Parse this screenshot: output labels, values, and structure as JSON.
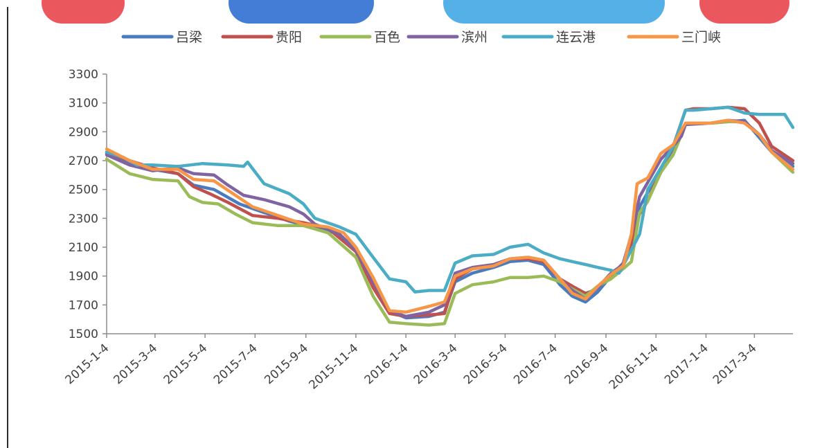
{
  "chart_data": {
    "type": "line",
    "title": "",
    "xlabel": "",
    "ylabel": "",
    "ylim": [
      1500,
      3300
    ],
    "yticks": [
      1500,
      1700,
      1900,
      2100,
      2300,
      2500,
      2700,
      2900,
      3100,
      3300
    ],
    "x_tick_labels": [
      "2015-1-4",
      "2015-3-4",
      "2015-5-4",
      "2015-7-4",
      "2015-9-4",
      "2015-11-4",
      "2016-1-4",
      "2016-3-4",
      "2016-5-4",
      "2016-7-4",
      "2016-9-4",
      "2016-11-4",
      "2017-1-4",
      "2017-3-4"
    ],
    "x_end": "2017-4-20",
    "legend_position": "top",
    "grid": false,
    "series": [
      {
        "name": "吕梁",
        "color": "#4a7bbf",
        "points": [
          [
            "2015-1-4",
            2750
          ],
          [
            "2015-2-1",
            2680
          ],
          [
            "2015-3-1",
            2640
          ],
          [
            "2015-4-1",
            2610
          ],
          [
            "2015-4-20",
            2530
          ],
          [
            "2015-5-15",
            2500
          ],
          [
            "2015-6-15",
            2400
          ],
          [
            "2015-7-15",
            2340
          ],
          [
            "2015-8-15",
            2280
          ],
          [
            "2015-9-15",
            2240
          ],
          [
            "2015-10-15",
            2190
          ],
          [
            "2015-11-4",
            2080
          ],
          [
            "2015-11-25",
            1830
          ],
          [
            "2015-12-15",
            1660
          ],
          [
            "2016-1-4",
            1610
          ],
          [
            "2016-2-1",
            1620
          ],
          [
            "2016-2-20",
            1650
          ],
          [
            "2016-3-4",
            1860
          ],
          [
            "2016-3-25",
            1920
          ],
          [
            "2016-4-20",
            1960
          ],
          [
            "2016-5-10",
            2000
          ],
          [
            "2016-6-1",
            2010
          ],
          [
            "2016-6-20",
            1980
          ],
          [
            "2016-7-10",
            1840
          ],
          [
            "2016-7-25",
            1760
          ],
          [
            "2016-8-10",
            1720
          ],
          [
            "2016-8-25",
            1790
          ],
          [
            "2016-9-10",
            1900
          ],
          [
            "2016-9-25",
            1990
          ],
          [
            "2016-10-5",
            2180
          ],
          [
            "2016-10-15",
            2380
          ],
          [
            "2016-10-25",
            2480
          ],
          [
            "2016-11-10",
            2650
          ],
          [
            "2016-11-25",
            2780
          ],
          [
            "2016-12-10",
            2950
          ],
          [
            "2016-12-20",
            2960
          ],
          [
            "2017-1-10",
            2960
          ],
          [
            "2017-1-31",
            2970
          ],
          [
            "2017-2-20",
            2980
          ],
          [
            "2017-3-10",
            2860
          ],
          [
            "2017-3-25",
            2760
          ],
          [
            "2017-4-20",
            2660
          ]
        ]
      },
      {
        "name": "贵阳",
        "color": "#c0504d",
        "points": [
          [
            "2015-1-4",
            2760
          ],
          [
            "2015-2-1",
            2700
          ],
          [
            "2015-3-1",
            2650
          ],
          [
            "2015-4-1",
            2610
          ],
          [
            "2015-4-20",
            2520
          ],
          [
            "2015-5-10",
            2470
          ],
          [
            "2015-6-1",
            2410
          ],
          [
            "2015-7-1",
            2320
          ],
          [
            "2015-8-1",
            2300
          ],
          [
            "2015-9-1",
            2270
          ],
          [
            "2015-10-1",
            2230
          ],
          [
            "2015-11-4",
            2070
          ],
          [
            "2015-11-25",
            1820
          ],
          [
            "2015-12-15",
            1640
          ],
          [
            "2016-1-4",
            1620
          ],
          [
            "2016-2-1",
            1630
          ],
          [
            "2016-2-20",
            1640
          ],
          [
            "2016-3-4",
            1880
          ],
          [
            "2016-3-25",
            1950
          ],
          [
            "2016-4-20",
            1970
          ],
          [
            "2016-5-10",
            2020
          ],
          [
            "2016-6-1",
            2020
          ],
          [
            "2016-6-20",
            2000
          ],
          [
            "2016-7-10",
            1880
          ],
          [
            "2016-7-25",
            1830
          ],
          [
            "2016-8-10",
            1780
          ],
          [
            "2016-8-20",
            1800
          ],
          [
            "2016-9-10",
            1900
          ],
          [
            "2016-9-25",
            1980
          ],
          [
            "2016-10-5",
            2110
          ],
          [
            "2016-10-15",
            2330
          ],
          [
            "2016-10-25",
            2420
          ],
          [
            "2016-11-10",
            2640
          ],
          [
            "2016-11-25",
            2800
          ],
          [
            "2016-12-10",
            3050
          ],
          [
            "2016-12-20",
            3060
          ],
          [
            "2017-1-10",
            3060
          ],
          [
            "2017-1-31",
            3070
          ],
          [
            "2017-2-20",
            3060
          ],
          [
            "2017-3-10",
            2960
          ],
          [
            "2017-3-25",
            2800
          ],
          [
            "2017-4-20",
            2700
          ]
        ]
      },
      {
        "name": "百色",
        "color": "#9bbb59",
        "points": [
          [
            "2015-1-4",
            2710
          ],
          [
            "2015-2-1",
            2610
          ],
          [
            "2015-3-1",
            2570
          ],
          [
            "2015-4-1",
            2560
          ],
          [
            "2015-4-15",
            2450
          ],
          [
            "2015-5-1",
            2410
          ],
          [
            "2015-5-20",
            2400
          ],
          [
            "2015-6-10",
            2330
          ],
          [
            "2015-7-1",
            2270
          ],
          [
            "2015-8-1",
            2250
          ],
          [
            "2015-9-1",
            2250
          ],
          [
            "2015-10-1",
            2200
          ],
          [
            "2015-11-4",
            2030
          ],
          [
            "2015-11-25",
            1760
          ],
          [
            "2015-12-15",
            1580
          ],
          [
            "2016-1-4",
            1570
          ],
          [
            "2016-2-1",
            1560
          ],
          [
            "2016-2-20",
            1570
          ],
          [
            "2016-3-4",
            1780
          ],
          [
            "2016-3-25",
            1840
          ],
          [
            "2016-4-20",
            1860
          ],
          [
            "2016-5-10",
            1890
          ],
          [
            "2016-6-1",
            1890
          ],
          [
            "2016-6-20",
            1900
          ],
          [
            "2016-7-10",
            1860
          ],
          [
            "2016-7-25",
            1810
          ],
          [
            "2016-8-10",
            1760
          ],
          [
            "2016-8-25",
            1830
          ],
          [
            "2016-9-10",
            1880
          ],
          [
            "2016-9-25",
            1950
          ],
          [
            "2016-10-5",
            2000
          ],
          [
            "2016-10-15",
            2340
          ],
          [
            "2016-10-25",
            2420
          ],
          [
            "2016-11-10",
            2620
          ],
          [
            "2016-11-25",
            2740
          ],
          [
            "2016-12-10",
            2950
          ],
          [
            "2016-12-20",
            2960
          ],
          [
            "2017-1-10",
            2960
          ],
          [
            "2017-1-31",
            2970
          ],
          [
            "2017-2-20",
            2970
          ],
          [
            "2017-3-10",
            2880
          ],
          [
            "2017-3-25",
            2760
          ],
          [
            "2017-4-20",
            2620
          ]
        ]
      },
      {
        "name": "滨州",
        "color": "#8064a2",
        "points": [
          [
            "2015-1-4",
            2740
          ],
          [
            "2015-2-1",
            2670
          ],
          [
            "2015-3-1",
            2630
          ],
          [
            "2015-4-1",
            2650
          ],
          [
            "2015-4-20",
            2610
          ],
          [
            "2015-5-15",
            2600
          ],
          [
            "2015-6-1",
            2530
          ],
          [
            "2015-6-20",
            2460
          ],
          [
            "2015-7-15",
            2430
          ],
          [
            "2015-8-15",
            2380
          ],
          [
            "2015-9-1",
            2330
          ],
          [
            "2015-9-15",
            2260
          ],
          [
            "2015-10-15",
            2190
          ],
          [
            "2015-11-4",
            2080
          ],
          [
            "2015-11-25",
            1860
          ],
          [
            "2015-12-15",
            1660
          ],
          [
            "2016-1-4",
            1620
          ],
          [
            "2016-2-1",
            1650
          ],
          [
            "2016-2-20",
            1700
          ],
          [
            "2016-3-4",
            1920
          ],
          [
            "2016-3-25",
            1960
          ],
          [
            "2016-4-20",
            1980
          ],
          [
            "2016-5-10",
            2020
          ],
          [
            "2016-6-1",
            2030
          ],
          [
            "2016-6-20",
            2010
          ],
          [
            "2016-7-10",
            1880
          ],
          [
            "2016-7-25",
            1800
          ],
          [
            "2016-8-10",
            1740
          ],
          [
            "2016-8-25",
            1820
          ],
          [
            "2016-9-10",
            1920
          ],
          [
            "2016-9-25",
            1980
          ],
          [
            "2016-10-5",
            2190
          ],
          [
            "2016-10-15",
            2450
          ],
          [
            "2016-10-25",
            2550
          ],
          [
            "2016-11-10",
            2710
          ],
          [
            "2016-11-25",
            2800
          ],
          [
            "2016-12-5",
            2870
          ],
          [
            "2016-12-10",
            2950
          ],
          [
            "2017-1-10",
            2960
          ],
          [
            "2017-1-31",
            2980
          ],
          [
            "2017-2-20",
            2970
          ],
          [
            "2017-3-10",
            2880
          ],
          [
            "2017-3-25",
            2770
          ],
          [
            "2017-4-20",
            2680
          ]
        ]
      },
      {
        "name": "连云港",
        "color": "#4bacc6",
        "points": [
          [
            "2015-1-4",
            2760
          ],
          [
            "2015-1-25",
            2720
          ],
          [
            "2015-2-10",
            2670
          ],
          [
            "2015-3-1",
            2670
          ],
          [
            "2015-4-1",
            2660
          ],
          [
            "2015-5-1",
            2680
          ],
          [
            "2015-6-1",
            2670
          ],
          [
            "2015-6-20",
            2660
          ],
          [
            "2015-6-25",
            2690
          ],
          [
            "2015-7-15",
            2540
          ],
          [
            "2015-8-15",
            2470
          ],
          [
            "2015-9-1",
            2400
          ],
          [
            "2015-9-15",
            2300
          ],
          [
            "2015-10-15",
            2240
          ],
          [
            "2015-11-4",
            2190
          ],
          [
            "2015-11-25",
            2030
          ],
          [
            "2015-12-15",
            1880
          ],
          [
            "2016-1-4",
            1860
          ],
          [
            "2016-1-15",
            1790
          ],
          [
            "2016-2-1",
            1800
          ],
          [
            "2016-2-20",
            1800
          ],
          [
            "2016-3-4",
            1990
          ],
          [
            "2016-3-25",
            2040
          ],
          [
            "2016-4-20",
            2050
          ],
          [
            "2016-5-10",
            2100
          ],
          [
            "2016-6-1",
            2120
          ],
          [
            "2016-6-20",
            2060
          ],
          [
            "2016-7-10",
            2020
          ],
          [
            "2016-7-25",
            2000
          ],
          [
            "2016-8-10",
            1980
          ],
          [
            "2016-8-25",
            1960
          ],
          [
            "2016-9-10",
            1940
          ],
          [
            "2016-9-20",
            1920
          ],
          [
            "2016-10-15",
            2190
          ],
          [
            "2016-10-25",
            2500
          ],
          [
            "2016-11-10",
            2650
          ],
          [
            "2016-11-25",
            2800
          ],
          [
            "2016-12-10",
            3050
          ],
          [
            "2016-12-20",
            3050
          ],
          [
            "2017-1-10",
            3060
          ],
          [
            "2017-1-31",
            3070
          ],
          [
            "2017-2-20",
            3030
          ],
          [
            "2017-3-10",
            3020
          ],
          [
            "2017-3-31",
            3020
          ],
          [
            "2017-4-10",
            3020
          ],
          [
            "2017-4-20",
            2930
          ]
        ]
      },
      {
        "name": "三门峡",
        "color": "#f79646",
        "points": [
          [
            "2015-1-4",
            2780
          ],
          [
            "2015-2-1",
            2700
          ],
          [
            "2015-3-1",
            2640
          ],
          [
            "2015-4-1",
            2640
          ],
          [
            "2015-4-20",
            2570
          ],
          [
            "2015-5-15",
            2560
          ],
          [
            "2015-6-10",
            2460
          ],
          [
            "2015-7-1",
            2380
          ],
          [
            "2015-8-1",
            2320
          ],
          [
            "2015-9-1",
            2260
          ],
          [
            "2015-10-1",
            2240
          ],
          [
            "2015-10-20",
            2200
          ],
          [
            "2015-11-4",
            2100
          ],
          [
            "2015-11-25",
            1890
          ],
          [
            "2015-12-15",
            1660
          ],
          [
            "2016-1-4",
            1650
          ],
          [
            "2016-2-1",
            1690
          ],
          [
            "2016-2-20",
            1720
          ],
          [
            "2016-3-4",
            1900
          ],
          [
            "2016-3-25",
            1950
          ],
          [
            "2016-4-20",
            1970
          ],
          [
            "2016-5-10",
            2020
          ],
          [
            "2016-6-1",
            2030
          ],
          [
            "2016-6-20",
            2010
          ],
          [
            "2016-7-10",
            1880
          ],
          [
            "2016-7-25",
            1780
          ],
          [
            "2016-8-10",
            1740
          ],
          [
            "2016-8-25",
            1830
          ],
          [
            "2016-9-10",
            1910
          ],
          [
            "2016-9-25",
            1970
          ],
          [
            "2016-10-5",
            2190
          ],
          [
            "2016-10-12",
            2540
          ],
          [
            "2016-10-25",
            2580
          ],
          [
            "2016-11-10",
            2750
          ],
          [
            "2016-11-25",
            2810
          ],
          [
            "2016-12-10",
            2960
          ],
          [
            "2016-12-20",
            2960
          ],
          [
            "2017-1-10",
            2960
          ],
          [
            "2017-1-31",
            2980
          ],
          [
            "2017-2-20",
            2960
          ],
          [
            "2017-3-10",
            2880
          ],
          [
            "2017-3-25",
            2760
          ],
          [
            "2017-4-20",
            2640
          ]
        ]
      }
    ]
  },
  "watermark": {
    "colors": [
      "#e8464b",
      "#2f6fd1",
      "#43a7e6",
      "#e8464b"
    ]
  }
}
